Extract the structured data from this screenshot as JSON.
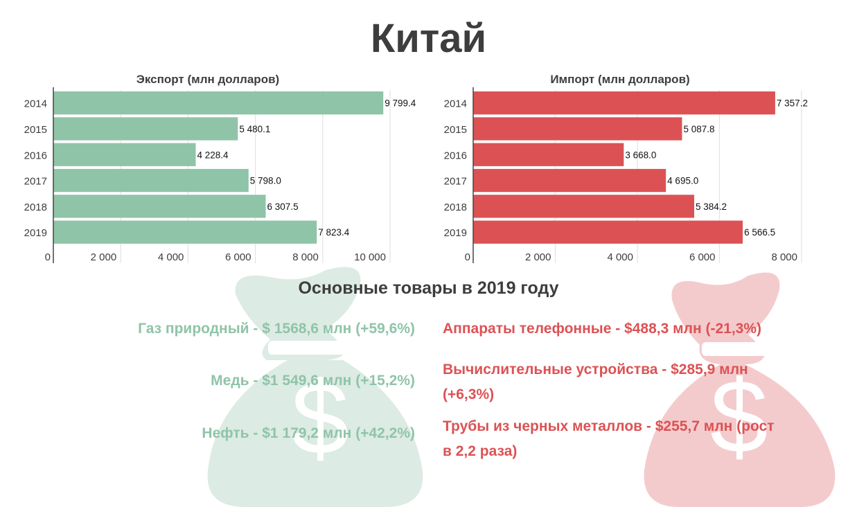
{
  "title": "Китай",
  "colors": {
    "export": "#8fc4a8",
    "import": "#dc5254",
    "export_bag": "#dcebe3",
    "import_bag": "#f4cbcd"
  },
  "chart_data": [
    {
      "type": "bar",
      "orientation": "horizontal",
      "title": "Экспорт (млн долларов)",
      "categories": [
        "2014",
        "2015",
        "2016",
        "2017",
        "2018",
        "2019"
      ],
      "values": [
        9799.4,
        5480.1,
        4228.4,
        5798.0,
        6307.5,
        7823.4
      ],
      "value_labels": [
        "9 799.4",
        "5 480.1",
        "4 228.4",
        "5 798.0",
        "6 307.5",
        "7 823.4"
      ],
      "xlim": [
        0,
        10000
      ],
      "xticks": [
        0,
        2000,
        4000,
        6000,
        8000,
        10000
      ],
      "xtick_labels": [
        "0",
        "2 000",
        "4 000",
        "6 000",
        "8 000",
        "10 000"
      ],
      "grid": true
    },
    {
      "type": "bar",
      "orientation": "horizontal",
      "title": "Импорт (млн долларов)",
      "categories": [
        "2014",
        "2015",
        "2016",
        "2017",
        "2018",
        "2019"
      ],
      "values": [
        7357.2,
        5087.8,
        3668.0,
        4695.0,
        5384.2,
        6566.5
      ],
      "value_labels": [
        "7 357.2",
        "5 087.8",
        "3 668.0",
        "4 695.0",
        "5 384.2",
        "6 566.5"
      ],
      "xlim": [
        0,
        8000
      ],
      "xticks": [
        0,
        2000,
        4000,
        6000,
        8000
      ],
      "xtick_labels": [
        "0",
        "2 000",
        "4 000",
        "6 000",
        "8 000"
      ],
      "grid": true
    }
  ],
  "goods": {
    "title": "Основные товары в 2019 году",
    "export": [
      "Газ природный - $ 1568,6 млн (+59,6%)",
      "Медь - $1 549,6 млн (+15,2%)",
      "Нефть - $1 179,2 млн (+42,2%)"
    ],
    "import": [
      "Аппараты телефонные - $488,3 млн (-21,3%)",
      "Вычислительные устройства - $285,9 млн (+6,3%)",
      "Трубы из черных металлов - $255,7 млн (рост в 2,2 раза)"
    ],
    "bag_symbol": "$"
  }
}
